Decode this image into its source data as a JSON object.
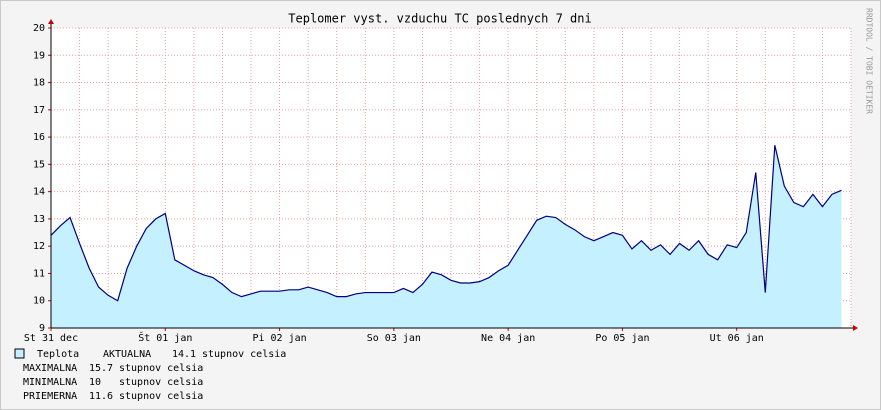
{
  "chart_data": {
    "type": "area",
    "title": "Teplomer vyst. vzduchu TC poslednych 7 dni",
    "side_text": "RRDTOOL / TOBI OETIKER",
    "categories": [
      "St 31 dec",
      null,
      null,
      null,
      null,
      null,
      null,
      null,
      null,
      null,
      null,
      null,
      "Št 01 jan",
      null,
      null,
      null,
      null,
      null,
      null,
      null,
      null,
      null,
      null,
      null,
      "Pi 02 jan",
      null,
      null,
      null,
      null,
      null,
      null,
      null,
      null,
      null,
      null,
      null,
      "So 03 jan",
      null,
      null,
      null,
      null,
      null,
      null,
      null,
      null,
      null,
      null,
      null,
      "Ne 04 jan",
      null,
      null,
      null,
      null,
      null,
      null,
      null,
      null,
      null,
      null,
      null,
      "Po 05 jan",
      null,
      null,
      null,
      null,
      null,
      null,
      null,
      null,
      null,
      null,
      null,
      "Ut 06 jan",
      null,
      null,
      null,
      null,
      null,
      null,
      null,
      null,
      null,
      null,
      null
    ],
    "series": [
      {
        "name": "Teplota",
        "color": "#000080",
        "fill": "#c4f0ff",
        "values": [
          12.4,
          12.75,
          13.05,
          12.1,
          11.2,
          10.5,
          10.2,
          10.0,
          11.2,
          12.0,
          12.65,
          13.0,
          13.2,
          11.5,
          11.3,
          11.1,
          10.95,
          10.85,
          10.6,
          10.3,
          10.15,
          10.25,
          10.35,
          10.35,
          10.35,
          10.4,
          10.4,
          10.5,
          10.4,
          10.3,
          10.15,
          10.15,
          10.25,
          10.3,
          10.3,
          10.3,
          10.3,
          10.45,
          10.3,
          10.6,
          11.05,
          10.95,
          10.75,
          10.65,
          10.65,
          10.7,
          10.85,
          11.1,
          11.3,
          11.85,
          12.4,
          12.95,
          13.1,
          13.05,
          12.8,
          12.6,
          12.35,
          12.2,
          12.35,
          12.5,
          12.4,
          11.9,
          12.2,
          11.85,
          12.05,
          11.7,
          12.1,
          11.85,
          12.2,
          11.7,
          11.5,
          12.05,
          11.95,
          12.5,
          14.7,
          10.3,
          15.7,
          14.2,
          13.6,
          13.45,
          13.9,
          13.45,
          13.9,
          14.05
        ]
      }
    ],
    "ylim": [
      9,
      20
    ],
    "yticks": [
      9,
      10,
      11,
      12,
      13,
      14,
      15,
      16,
      17,
      18,
      19,
      20
    ],
    "grid": true,
    "stats": [
      {
        "label": "AKTUALNA",
        "value": 14.1
      },
      {
        "label": "MAXIMALNA",
        "value": 15.7
      },
      {
        "label": "MINIMALNA",
        "value": 10.0
      },
      {
        "label": "PRIEMERNA",
        "value": 11.6
      }
    ],
    "unit": "stupnov celsia"
  }
}
